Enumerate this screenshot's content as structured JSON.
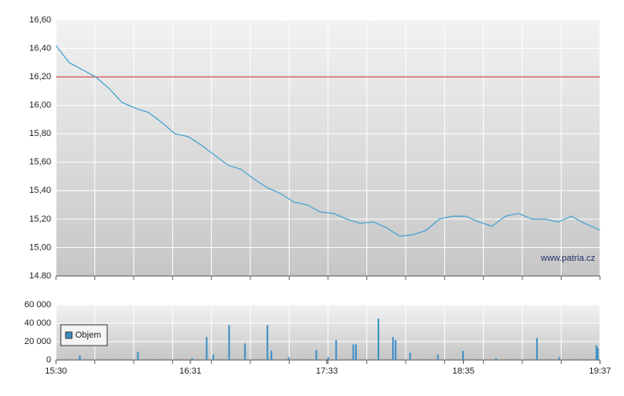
{
  "chart_data": [
    {
      "type": "line",
      "x": [
        15.5,
        15.6,
        15.7,
        15.8,
        15.9,
        16.0,
        16.1,
        16.2,
        16.3,
        16.4,
        16.5,
        16.6,
        16.7,
        16.8,
        16.9,
        17.0,
        17.1,
        17.2,
        17.3,
        17.4,
        17.5,
        17.6,
        17.7,
        17.8,
        17.9,
        18.0,
        18.1,
        18.2,
        18.3,
        18.4,
        18.5,
        18.6,
        18.7,
        18.8,
        18.9,
        19.0,
        19.1,
        19.2,
        19.3,
        19.4,
        19.5,
        19.6,
        19.6167
      ],
      "series": [
        {
          "color": "#4aa3d0",
          "values": [
            16.42,
            16.3,
            16.25,
            16.2,
            16.12,
            16.02,
            15.98,
            15.95,
            15.88,
            15.8,
            15.78,
            15.72,
            15.65,
            15.58,
            15.55,
            15.48,
            15.42,
            15.38,
            15.32,
            15.3,
            15.25,
            15.24,
            15.2,
            15.17,
            15.18,
            15.14,
            15.08,
            15.09,
            15.12,
            15.2,
            15.22,
            15.22,
            15.18,
            15.15,
            15.22,
            15.24,
            15.2,
            15.2,
            15.18,
            15.22,
            15.17,
            15.13,
            15.12
          ]
        }
      ],
      "xlim": [
        15.5,
        19.6167
      ],
      "ylim": [
        14.8,
        16.6
      ],
      "yticks": [
        {
          "value": 14.8,
          "label": "14.80"
        },
        {
          "value": 15.0,
          "label": "15,00"
        },
        {
          "value": 15.2,
          "label": "15,20"
        },
        {
          "value": 15.4,
          "label": "15,40"
        },
        {
          "value": 15.6,
          "label": "15,60"
        },
        {
          "value": 15.8,
          "label": "15,80"
        },
        {
          "value": 16.0,
          "label": "16,00"
        },
        {
          "value": 16.2,
          "label": "16,20"
        },
        {
          "value": 16.4,
          "label": "16,40"
        },
        {
          "value": 16.6,
          "label": "16,60"
        }
      ],
      "reference_line": {
        "value": 16.2,
        "color": "#cc2222"
      },
      "annotation": "www.patria.cz",
      "grid": true
    },
    {
      "type": "bar",
      "x": [
        15.68,
        16.12,
        16.53,
        16.64,
        16.69,
        16.81,
        16.93,
        17.1,
        17.13,
        17.26,
        17.47,
        17.56,
        17.62,
        17.75,
        17.77,
        17.94,
        18.05,
        18.07,
        18.18,
        18.39,
        18.58,
        18.83,
        19.14,
        19.31,
        19.59,
        19.6
      ],
      "series": [
        {
          "name": "Objem",
          "color": "#3c8ec4",
          "values": [
            5000,
            9000,
            2000,
            25000,
            6000,
            38000,
            18000,
            38000,
            10000,
            3000,
            11000,
            3000,
            22000,
            17000,
            17000,
            45000,
            25000,
            22000,
            8000,
            6000,
            10000,
            2000,
            24000,
            3000,
            16000,
            13000
          ]
        }
      ],
      "xlim": [
        15.5,
        19.6167
      ],
      "ylim": [
        0,
        60000
      ],
      "yticks": [
        0,
        {
          "value": 20000,
          "label": "20 000"
        },
        {
          "value": 40000,
          "label": "40 000"
        },
        {
          "value": 60000,
          "label": "60 000"
        }
      ],
      "xticks": [
        {
          "value": 15.5,
          "label": "15:30"
        },
        {
          "value": 16.5167,
          "label": "16:31"
        },
        {
          "value": 17.55,
          "label": "17:33"
        },
        {
          "value": 18.5833,
          "label": "18:35"
        },
        {
          "value": 19.6167,
          "label": "19:37"
        }
      ],
      "legend": "top-left",
      "grid": true
    }
  ]
}
